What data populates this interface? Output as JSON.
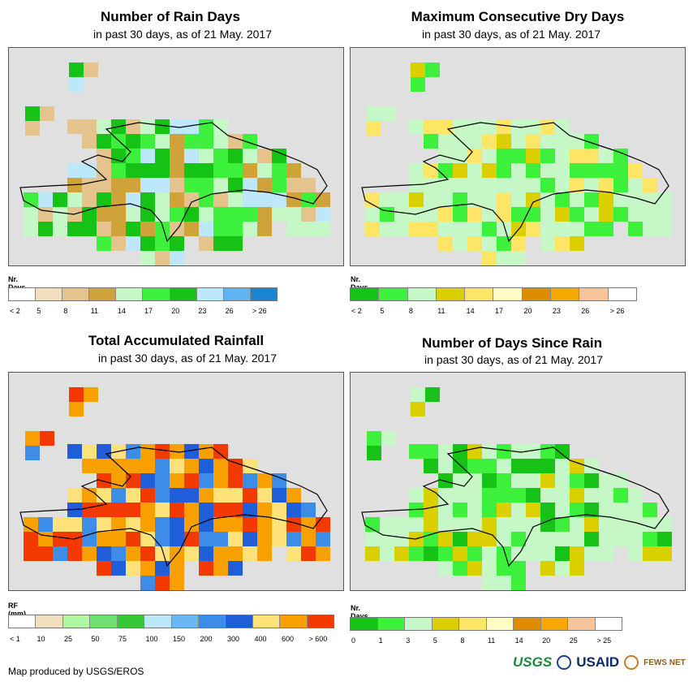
{
  "panels": [
    {
      "title": "Number of Rain Days",
      "subtitle": "in past 30 days, as of 21 May. 2017",
      "legend_title": "Nr. Days",
      "legend_labels": [
        "< 2",
        "5",
        "8",
        "11",
        "14",
        "17",
        "20",
        "23",
        "26",
        "> 26"
      ],
      "legend_colors": [
        "#ffffff",
        "#f3dfc0",
        "#e4c38c",
        "#cfa33a",
        "#c6f7c6",
        "#3cf03c",
        "#16c216",
        "#bde8fa",
        "#5eb3f2",
        "#1a84d4"
      ]
    },
    {
      "title": "Maximum Consecutive Dry Days",
      "subtitle": "in past 30 days, as of 21 May. 2017",
      "legend_title": "Nr. Days",
      "legend_labels": [
        "< 2",
        "5",
        "8",
        "11",
        "14",
        "17",
        "20",
        "23",
        "26",
        "> 26"
      ],
      "legend_colors": [
        "#16c216",
        "#3cf03c",
        "#c6f7c6",
        "#dccf00",
        "#ffe566",
        "#fffcc8",
        "#e08c00",
        "#f7a800",
        "#f9c49a",
        "#ffffff"
      ]
    },
    {
      "title": "Total Accumulated Rainfall",
      "subtitle": "in past 30 days, as of 21 May. 2017",
      "legend_title": "RF (mm)",
      "legend_labels": [
        "< 1",
        "10",
        "25",
        "50",
        "75",
        "100",
        "150",
        "200",
        "300",
        "400",
        "600",
        "> 600"
      ],
      "legend_colors": [
        "#ffffff",
        "#f3dfc0",
        "#aef7a0",
        "#6fe06f",
        "#37c837",
        "#bde8fa",
        "#6ab7f2",
        "#3c8ce8",
        "#1f5ed8",
        "#ffe27a",
        "#f7a000",
        "#f23a00"
      ]
    },
    {
      "title": "Number of Days Since Rain",
      "subtitle": "in past 30 days, as of 21 May. 2017",
      "legend_title": "Nr. Days",
      "legend_labels": [
        "0",
        "1",
        "3",
        "5",
        "8",
        "11",
        "14",
        "20",
        "25",
        "> 25"
      ],
      "legend_colors": [
        "#16c216",
        "#3cf03c",
        "#c6f7c6",
        "#dccf00",
        "#ffe566",
        "#fffcc8",
        "#e08c00",
        "#f7a800",
        "#f9c49a",
        "#ffffff"
      ]
    }
  ],
  "footer": "Map produced by USGS/EROS",
  "logos": {
    "usgs": "USGS",
    "usaid": "USAID",
    "fews": "FEWS NET"
  }
}
